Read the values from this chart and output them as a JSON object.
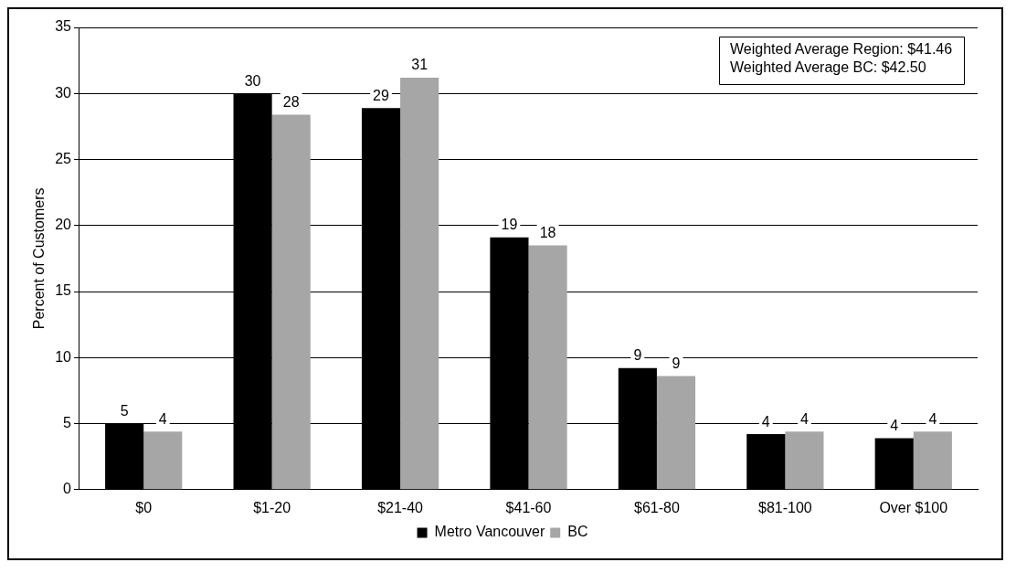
{
  "chart_data": {
    "type": "bar",
    "ylabel": "Percent of Customers",
    "categories": [
      "$0",
      "$1-20",
      "$21-40",
      "$41-60",
      "$61-80",
      "$81-100",
      "Over $100"
    ],
    "series": [
      {
        "name": "Metro Vancouver",
        "color": "#000000",
        "values": [
          5.0,
          30.0,
          28.9,
          19.1,
          9.2,
          4.2,
          3.9
        ],
        "value_labels": [
          "5",
          "30",
          "29",
          "19",
          "9",
          "4",
          "4"
        ]
      },
      {
        "name": "BC",
        "color": "#a6a6a6",
        "values": [
          4.4,
          28.4,
          31.2,
          18.5,
          8.6,
          4.4,
          4.4
        ],
        "value_labels": [
          "4",
          "28",
          "31",
          "18",
          "9",
          "4",
          "4"
        ]
      }
    ],
    "ylim": [
      0,
      35
    ],
    "yticks": [
      0,
      5,
      10,
      15,
      20,
      25,
      30,
      35
    ],
    "grid": "y",
    "legend": "bottom",
    "annotations": [
      "Weighted Average Region: $41.46",
      "Weighted Average BC: $42.50"
    ]
  }
}
